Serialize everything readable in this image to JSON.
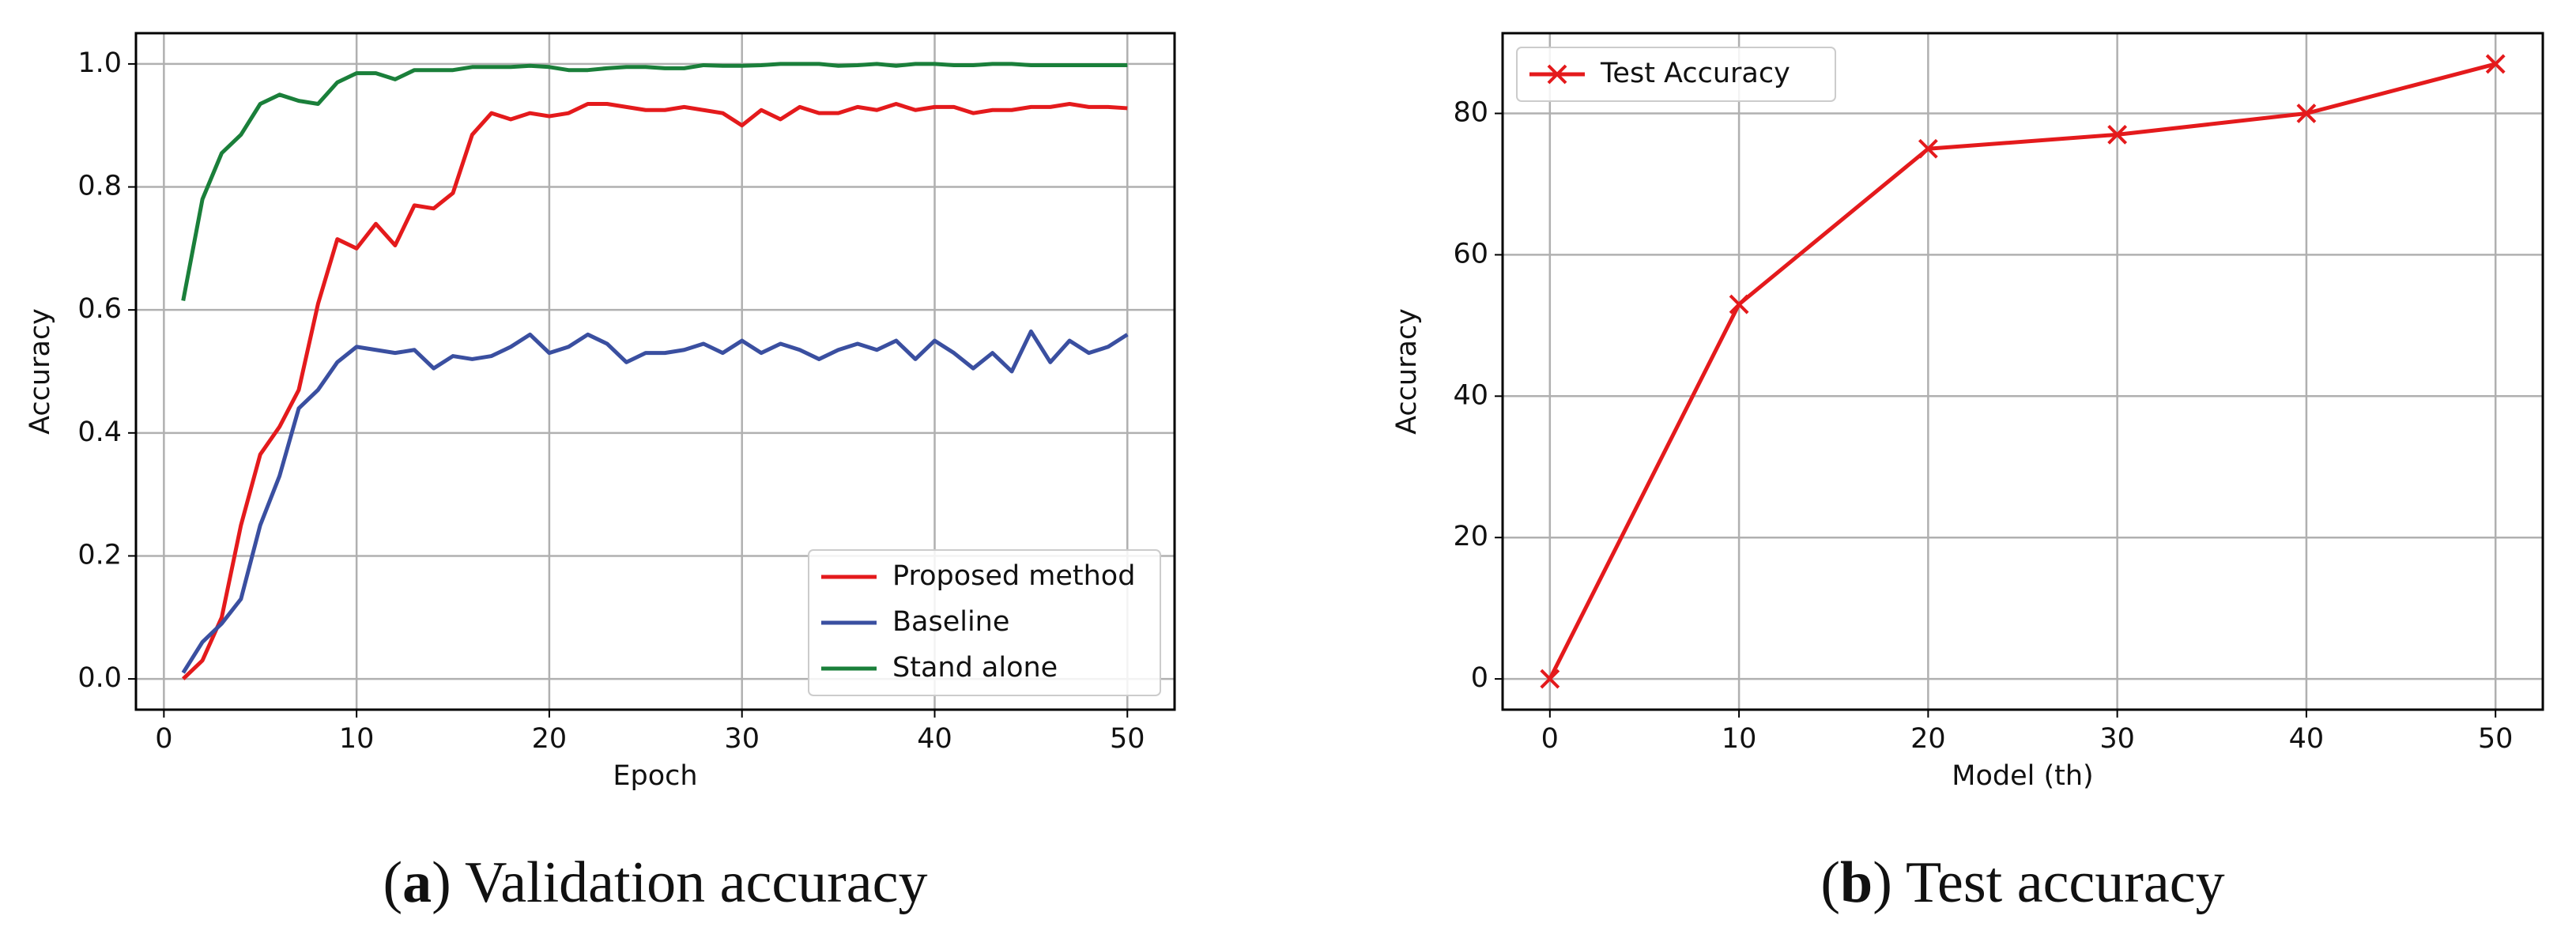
{
  "chart_data": [
    {
      "type": "line",
      "caption": [
        "(",
        "a",
        ") Validation accuracy"
      ],
      "xlabel": "Epoch",
      "ylabel": "Accuracy",
      "x": [
        1,
        2,
        3,
        4,
        5,
        6,
        7,
        8,
        9,
        10,
        11,
        12,
        13,
        14,
        15,
        16,
        17,
        18,
        19,
        20,
        21,
        22,
        23,
        24,
        25,
        26,
        27,
        28,
        29,
        30,
        31,
        32,
        33,
        34,
        35,
        36,
        37,
        38,
        39,
        40,
        41,
        42,
        43,
        44,
        45,
        46,
        47,
        48,
        49,
        50
      ],
      "series": [
        {
          "name": "Proposed method",
          "color": "#e41a1c",
          "values": [
            0.0,
            0.03,
            0.1,
            0.25,
            0.365,
            0.41,
            0.47,
            0.61,
            0.715,
            0.7,
            0.74,
            0.705,
            0.77,
            0.765,
            0.79,
            0.885,
            0.92,
            0.91,
            0.92,
            0.915,
            0.92,
            0.935,
            0.935,
            0.93,
            0.925,
            0.925,
            0.93,
            0.925,
            0.92,
            0.9,
            0.925,
            0.91,
            0.93,
            0.92,
            0.92,
            0.93,
            0.925,
            0.935,
            0.925,
            0.93,
            0.93,
            0.92,
            0.925,
            0.925,
            0.93,
            0.93,
            0.935,
            0.93,
            0.93,
            0.928
          ]
        },
        {
          "name": "Baseline",
          "color": "#3a4fa0",
          "values": [
            0.01,
            0.06,
            0.09,
            0.13,
            0.25,
            0.33,
            0.44,
            0.47,
            0.515,
            0.54,
            0.535,
            0.53,
            0.535,
            0.505,
            0.525,
            0.52,
            0.525,
            0.54,
            0.56,
            0.53,
            0.54,
            0.56,
            0.545,
            0.515,
            0.53,
            0.53,
            0.535,
            0.545,
            0.53,
            0.55,
            0.53,
            0.545,
            0.535,
            0.52,
            0.535,
            0.545,
            0.535,
            0.55,
            0.52,
            0.55,
            0.53,
            0.505,
            0.53,
            0.5,
            0.565,
            0.515,
            0.55,
            0.53,
            0.54,
            0.56
          ]
        },
        {
          "name": "Stand alone",
          "color": "#1a7f3a",
          "values": [
            0.615,
            0.78,
            0.855,
            0.885,
            0.935,
            0.95,
            0.94,
            0.935,
            0.97,
            0.985,
            0.985,
            0.975,
            0.99,
            0.99,
            0.99,
            0.995,
            0.995,
            0.995,
            0.997,
            0.995,
            0.99,
            0.99,
            0.993,
            0.995,
            0.995,
            0.993,
            0.993,
            0.998,
            0.997,
            0.997,
            0.998,
            1.0,
            1.0,
            1.0,
            0.997,
            0.998,
            1.0,
            0.997,
            1.0,
            1.0,
            0.998,
            0.998,
            1.0,
            1.0,
            0.998,
            0.998,
            0.998,
            0.998,
            0.998,
            0.998
          ]
        }
      ],
      "xlim": [
        -1.45,
        52.45
      ],
      "xticks": [
        0,
        10,
        20,
        30,
        40,
        50
      ],
      "ylim": [
        -0.05,
        1.05
      ],
      "yticks": [
        {
          "value": 0,
          "label": "0.0"
        },
        {
          "value": 0.2,
          "label": "0.2"
        },
        {
          "value": 0.4,
          "label": "0.4"
        },
        {
          "value": 0.6,
          "label": "0.6"
        },
        {
          "value": 0.8,
          "label": "0.8"
        },
        {
          "value": 1,
          "label": "1.0"
        }
      ],
      "grid": true,
      "legend": "lower-right"
    },
    {
      "type": "line",
      "caption": [
        "(",
        "b",
        ") Test accuracy"
      ],
      "xlabel": "Model (th)",
      "ylabel": "Accuracy",
      "x": [
        0,
        10,
        20,
        30,
        40,
        50
      ],
      "series": [
        {
          "name": "Test Accuracy",
          "color": "#e41a1c",
          "marker": "x",
          "values": [
            0,
            53,
            75,
            77,
            80,
            87
          ]
        }
      ],
      "xlim": [
        -2.5,
        52.5
      ],
      "xticks": [
        0,
        10,
        20,
        30,
        40,
        50
      ],
      "ylim": [
        -4.35,
        91.35
      ],
      "yticks": [
        0,
        20,
        40,
        60,
        80
      ],
      "grid": true,
      "legend": "upper-left"
    }
  ]
}
